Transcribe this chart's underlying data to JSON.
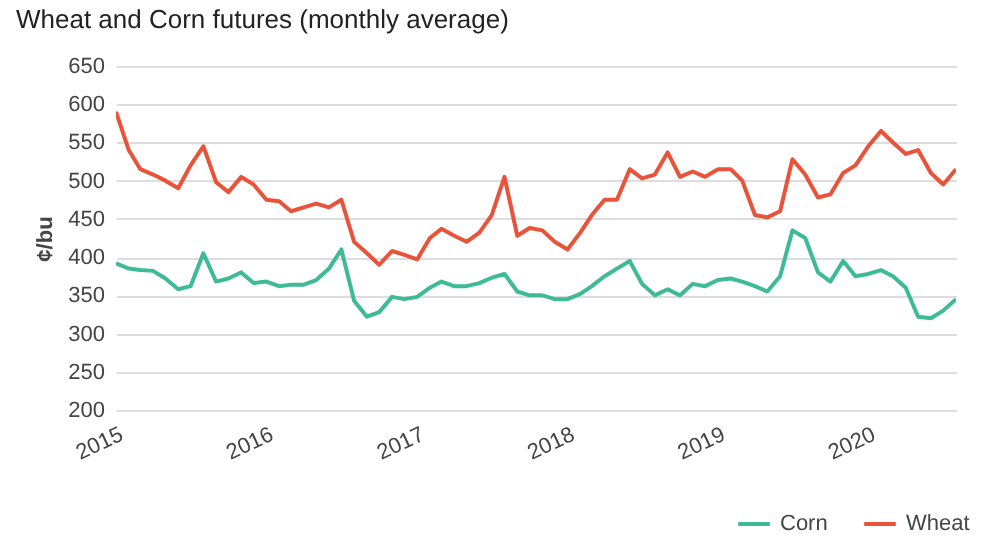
{
  "chart_data": {
    "type": "line",
    "title": "Wheat and Corn futures (monthly average)",
    "ylabel": "¢/bu",
    "x": [
      "2015-01",
      "2015-02",
      "2015-03",
      "2015-04",
      "2015-05",
      "2015-06",
      "2015-07",
      "2015-08",
      "2015-09",
      "2015-10",
      "2015-11",
      "2015-12",
      "2016-01",
      "2016-02",
      "2016-03",
      "2016-04",
      "2016-05",
      "2016-06",
      "2016-07",
      "2016-08",
      "2016-09",
      "2016-10",
      "2016-11",
      "2016-12",
      "2017-01",
      "2017-02",
      "2017-03",
      "2017-04",
      "2017-05",
      "2017-06",
      "2017-07",
      "2017-08",
      "2017-09",
      "2017-10",
      "2017-11",
      "2017-12",
      "2018-01",
      "2018-02",
      "2018-03",
      "2018-04",
      "2018-05",
      "2018-06",
      "2018-07",
      "2018-08",
      "2018-09",
      "2018-10",
      "2018-11",
      "2018-12",
      "2019-01",
      "2019-02",
      "2019-03",
      "2019-04",
      "2019-05",
      "2019-06",
      "2019-07",
      "2019-08",
      "2019-09",
      "2019-10",
      "2019-11",
      "2019-12",
      "2020-01",
      "2020-02",
      "2020-03",
      "2020-04",
      "2020-05",
      "2020-06",
      "2020-07",
      "2020-08"
    ],
    "series": [
      {
        "name": "Corn",
        "color": "#3dbb95",
        "values": [
          392,
          385,
          383,
          382,
          372,
          358,
          362,
          405,
          368,
          372,
          380,
          366,
          368,
          362,
          364,
          364,
          370,
          385,
          410,
          343,
          322,
          328,
          348,
          345,
          348,
          360,
          368,
          362,
          362,
          366,
          373,
          378,
          355,
          350,
          350,
          345,
          345,
          352,
          362,
          375,
          385,
          395,
          365,
          350,
          358,
          350,
          365,
          362,
          370,
          372,
          368,
          362,
          355,
          375,
          435,
          425,
          380,
          368,
          395,
          375,
          378,
          383,
          375,
          360,
          322,
          320,
          330,
          345
        ]
      },
      {
        "name": "Wheat",
        "color": "#e8533a",
        "values": [
          590,
          540,
          515,
          508,
          500,
          490,
          520,
          545,
          498,
          485,
          505,
          495,
          475,
          473,
          460,
          465,
          470,
          465,
          475,
          420,
          405,
          390,
          408,
          403,
          397,
          425,
          437,
          428,
          420,
          432,
          455,
          505,
          428,
          438,
          435,
          420,
          410,
          432,
          455,
          475,
          475,
          515,
          503,
          508,
          537,
          505,
          512,
          505,
          515,
          515,
          500,
          455,
          452,
          460,
          528,
          508,
          478,
          482,
          510,
          520,
          545,
          565,
          550,
          535,
          540,
          510,
          495,
          515
        ]
      }
    ],
    "xlim": [
      "2015-01",
      "2020-08"
    ],
    "xticks": [
      {
        "value": "2015-01",
        "label": "2015"
      },
      {
        "value": "2016-01",
        "label": "2016"
      },
      {
        "value": "2017-01",
        "label": "2017"
      },
      {
        "value": "2018-01",
        "label": "2018"
      },
      {
        "value": "2019-01",
        "label": "2019"
      },
      {
        "value": "2020-01",
        "label": "2020"
      }
    ],
    "ylim": [
      200,
      650
    ],
    "yticks": [
      200,
      250,
      300,
      350,
      400,
      450,
      500,
      550,
      600,
      650
    ],
    "grid": "y",
    "legend": "bottom right",
    "line_style": "solid"
  }
}
